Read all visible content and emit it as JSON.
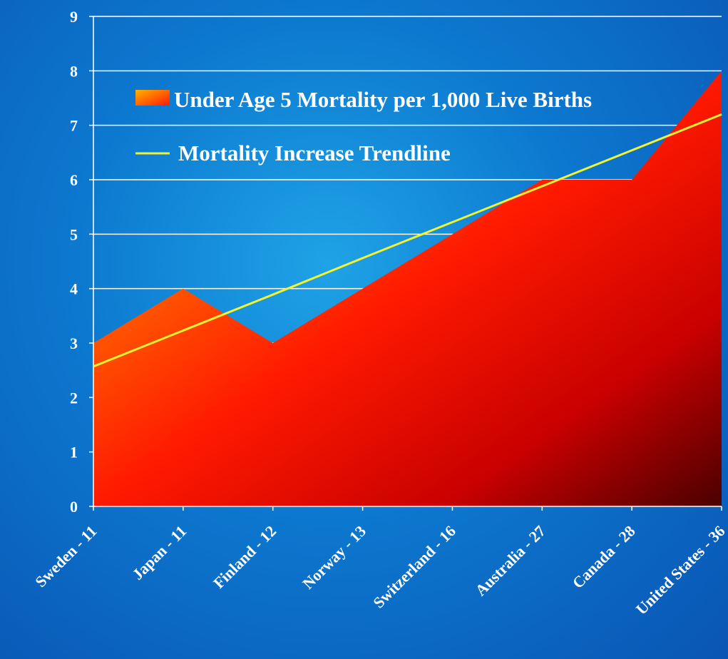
{
  "chart_data": {
    "type": "area",
    "categories": [
      "Sweden - 11",
      "Japan - 11",
      "Finland - 12",
      "Norway - 13",
      "Switzerland - 16",
      "Australia - 27",
      "Canada - 28",
      "United States - 36"
    ],
    "series": [
      {
        "name": "Under Age 5 Mortality per 1,000 Live Births",
        "type": "area",
        "values": [
          3,
          4,
          3,
          4,
          5,
          6,
          6,
          8
        ]
      },
      {
        "name": "Mortality Increase Trendline",
        "type": "line",
        "values": [
          2.57,
          3.23,
          3.89,
          4.56,
          5.22,
          5.88,
          6.54,
          7.2
        ],
        "color": "#f2f230"
      }
    ],
    "ylim": [
      0,
      9
    ],
    "yticks": [
      0,
      1,
      2,
      3,
      4,
      5,
      6,
      7,
      8,
      9
    ],
    "grid": true,
    "legend_position": "top-left",
    "colors": {
      "area_light": "#ffb300",
      "area_mid": "#ff1a00",
      "area_dark": "#4a0000",
      "trendline": "#f2f230",
      "grid": "#ffffff"
    }
  }
}
